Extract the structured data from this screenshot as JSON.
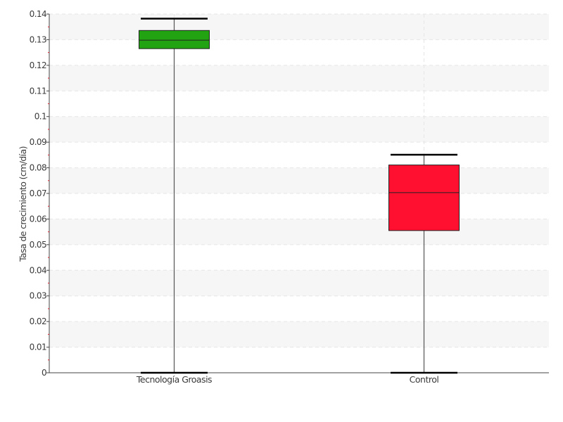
{
  "chart_data": {
    "type": "boxplot",
    "title": "",
    "xlabel": "",
    "ylabel": "Tasa de crecimiento (cm/día)",
    "ylim": [
      0,
      0.14
    ],
    "yticks": [
      "0",
      "0.01",
      "0.02",
      "0.03",
      "0.04",
      "0.05",
      "0.06",
      "0.07",
      "0.08",
      "0.09",
      "0.1",
      "0.11",
      "0.12",
      "0.13",
      "0.14"
    ],
    "grid": true,
    "legend": "none",
    "categories": [
      "Tecnología Groasis",
      "Control"
    ],
    "boxes": [
      {
        "category": "Tecnología Groasis",
        "min": 0,
        "q1": 0.1265,
        "median": 0.1298,
        "q3": 0.1336,
        "max": 0.1382,
        "color": "#22a311"
      },
      {
        "category": "Control",
        "min": 0,
        "q1": 0.0555,
        "median": 0.0703,
        "q3": 0.0811,
        "max": 0.0851,
        "color": "#ff1030"
      }
    ]
  }
}
